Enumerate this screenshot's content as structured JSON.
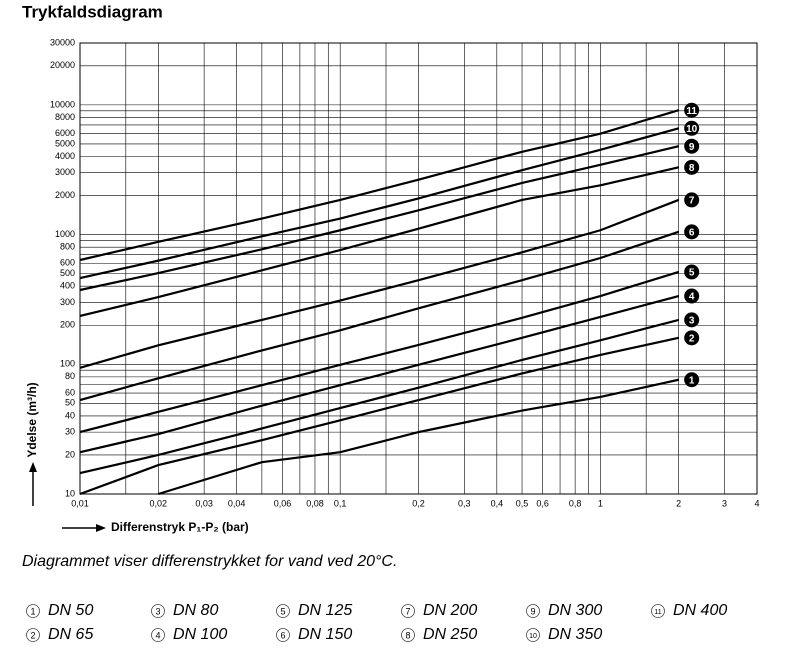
{
  "chart_data": {
    "type": "line",
    "title": "Trykfaldsdiagram",
    "ylabel": "Ydelse (m³/h)",
    "xlabel": "Differenstryk P₁-P₂ (bar)",
    "caption": "Diagrammet viser differenstrykket for vand ved 20°C.",
    "xlog": true,
    "ylog": true,
    "grid": true,
    "xlim": [
      0.01,
      4
    ],
    "ylim": [
      10,
      30000
    ],
    "xticks": [
      {
        "value": 0.01,
        "label": "0,01"
      },
      {
        "value": 0.02,
        "label": "0,02"
      },
      {
        "value": 0.03,
        "label": "0,03"
      },
      {
        "value": 0.04,
        "label": "0,04"
      },
      {
        "value": 0.06,
        "label": "0,06"
      },
      {
        "value": 0.08,
        "label": "0,08"
      },
      {
        "value": 0.1,
        "label": "0,1"
      },
      {
        "value": 0.2,
        "label": "0,2"
      },
      {
        "value": 0.3,
        "label": "0,3"
      },
      {
        "value": 0.4,
        "label": "0,4"
      },
      {
        "value": 0.5,
        "label": "0,5"
      },
      {
        "value": 0.6,
        "label": "0,6"
      },
      {
        "value": 0.8,
        "label": "0,8"
      },
      1,
      2,
      3,
      4
    ],
    "xminor": [
      0.015,
      0.05,
      0.07,
      0.09,
      0.15,
      0.7,
      0.9,
      1.5
    ],
    "yticks": [
      10,
      20,
      30,
      40,
      50,
      60,
      80,
      100,
      200,
      300,
      400,
      500,
      600,
      800,
      1000,
      2000,
      3000,
      4000,
      5000,
      6000,
      8000,
      10000,
      20000,
      30000
    ],
    "yminor": [
      70,
      90,
      700,
      900,
      7000,
      9000
    ],
    "x": [
      0.01,
      0.02,
      0.05,
      0.1,
      0.2,
      0.5,
      1,
      2
    ],
    "series": [
      {
        "name": "DN 50",
        "label": "1",
        "color": "#000000",
        "values": [
          null,
          10,
          17.6,
          21,
          30,
          44,
          56,
          76
        ]
      },
      {
        "name": "DN 65",
        "label": "2",
        "color": "#000000",
        "values": [
          10,
          16.7,
          26,
          37,
          53,
          85,
          118,
          160
        ]
      },
      {
        "name": "DN 80",
        "label": "3",
        "color": "#000000",
        "values": [
          14.5,
          20,
          32,
          46,
          66,
          108,
          153,
          220
        ]
      },
      {
        "name": "DN 100",
        "label": "4",
        "color": "#000000",
        "values": [
          21,
          29,
          48,
          69,
          99,
          160,
          232,
          336
        ]
      },
      {
        "name": "DN 125",
        "label": "5",
        "color": "#000000",
        "values": [
          30,
          43,
          69,
          99,
          141,
          228,
          336,
          515
        ]
      },
      {
        "name": "DN 150",
        "label": "6",
        "color": "#000000",
        "values": [
          53,
          78,
          128,
          183,
          270,
          445,
          660,
          1050
        ]
      },
      {
        "name": "DN 200",
        "label": "7",
        "color": "#000000",
        "values": [
          94,
          140,
          220,
          310,
          445,
          730,
          1080,
          1850
        ]
      },
      {
        "name": "DN 250",
        "label": "8",
        "color": "#000000",
        "values": [
          236,
          330,
          530,
          760,
          1110,
          1850,
          2400,
          3300
        ]
      },
      {
        "name": "DN 300",
        "label": "9",
        "color": "#000000",
        "values": [
          374,
          505,
          770,
          1080,
          1540,
          2500,
          3450,
          4800
        ]
      },
      {
        "name": "DN 350",
        "label": "10",
        "color": "#000000",
        "values": [
          462,
          630,
          970,
          1330,
          1900,
          3140,
          4500,
          6600
        ]
      },
      {
        "name": "DN 400",
        "label": "11",
        "color": "#000000",
        "values": [
          637,
          880,
          1330,
          1850,
          2650,
          4350,
          6000,
          9100
        ]
      }
    ]
  }
}
